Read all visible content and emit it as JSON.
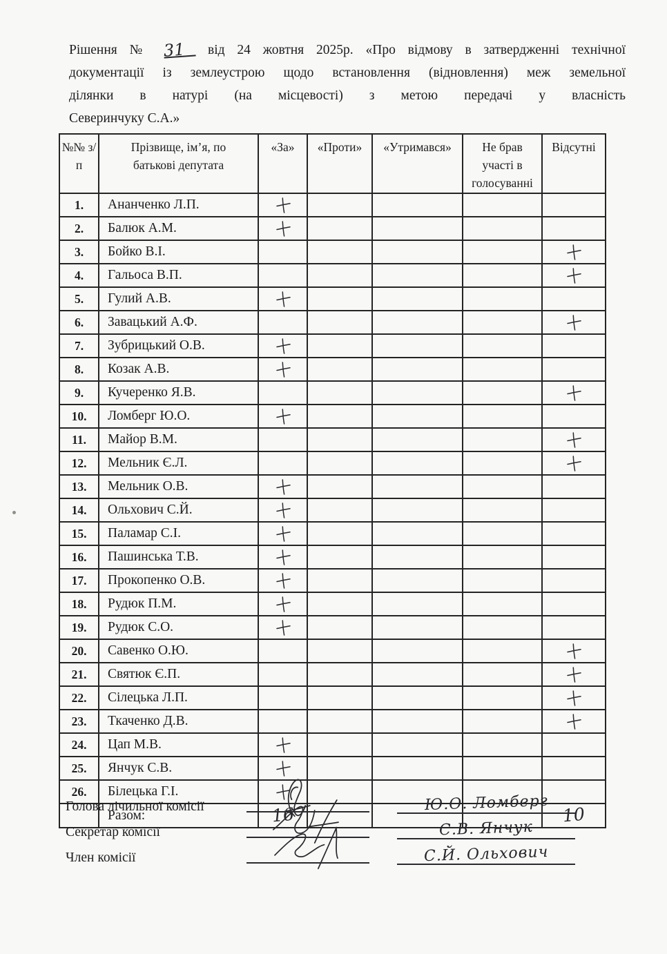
{
  "colors": {
    "ink": "#242424",
    "paper": "#f8f8f6",
    "handwriting": "#26262b"
  },
  "icons": {
    "vote_mark": "handwritten-plus-icon",
    "signature": "ink-scribble-icon"
  },
  "header": {
    "prefix": "Рішення №",
    "number": "31",
    "line1_rest": "від 24 жовтня 2025р. «Про відмову в затвердженні технічної",
    "line2": "документації із землеустрою щодо встановлення (відновлення) меж земельної",
    "line3": "ділянки в натурі (на місцевості) з метою передачі у власність",
    "line4": "Северинчуку С.А.»"
  },
  "table": {
    "headers": [
      "№№ з/п",
      "Прізвище, ім’я, по батькові депутата",
      "«За»",
      "«Проти»",
      "«Утримався»",
      "Не брав участі в голосуванні",
      "Відсутні"
    ],
    "rows": [
      {
        "num": "1.",
        "name": "Ананченко Л.П.",
        "vote": "za"
      },
      {
        "num": "2.",
        "name": "Балюк А.М.",
        "vote": "za"
      },
      {
        "num": "3.",
        "name": "Бойко В.І.",
        "vote": "vidsutni"
      },
      {
        "num": "4.",
        "name": "Гальоса В.П.",
        "vote": "vidsutni"
      },
      {
        "num": "5.",
        "name": "Гулий А.В.",
        "vote": "za"
      },
      {
        "num": "6.",
        "name": "Завацький А.Ф.",
        "vote": "vidsutni"
      },
      {
        "num": "7.",
        "name": "Зубрицький О.В.",
        "vote": "za"
      },
      {
        "num": "8.",
        "name": "Козак А.В.",
        "vote": "za"
      },
      {
        "num": "9.",
        "name": "Кучеренко Я.В.",
        "vote": "vidsutni"
      },
      {
        "num": "10.",
        "name": "Ломберг Ю.О.",
        "vote": "za"
      },
      {
        "num": "11.",
        "name": "Майор В.М.",
        "vote": "vidsutni"
      },
      {
        "num": "12.",
        "name": "Мельник Є.Л.",
        "vote": "vidsutni"
      },
      {
        "num": "13.",
        "name": "Мельник О.В.",
        "vote": "za"
      },
      {
        "num": "14.",
        "name": "Ольхович С.Й.",
        "vote": "za"
      },
      {
        "num": "15.",
        "name": "Паламар С.І.",
        "vote": "za"
      },
      {
        "num": "16.",
        "name": "Пашинська Т.В.",
        "vote": "za"
      },
      {
        "num": "17.",
        "name": "Прокопенко О.В.",
        "vote": "za"
      },
      {
        "num": "18.",
        "name": "Рудюк П.М.",
        "vote": "za"
      },
      {
        "num": "19.",
        "name": "Рудюк С.О.",
        "vote": "za"
      },
      {
        "num": "20.",
        "name": "Савенко О.Ю.",
        "vote": "vidsutni"
      },
      {
        "num": "21.",
        "name": "Святюк Є.П.",
        "vote": "vidsutni"
      },
      {
        "num": "22.",
        "name": "Сілецька Л.П.",
        "vote": "vidsutni"
      },
      {
        "num": "23.",
        "name": "Ткаченко Д.В.",
        "vote": "vidsutni"
      },
      {
        "num": "24.",
        "name": "Цап М.В.",
        "vote": "za"
      },
      {
        "num": "25.",
        "name": "Янчук С.В.",
        "vote": "za"
      },
      {
        "num": "26.",
        "name": "Білецька Г.І.",
        "vote": "za"
      }
    ],
    "total_label": "Разом:",
    "total_za": "16",
    "total_vidsutni": "10"
  },
  "signatures": {
    "rows": [
      {
        "role": "Голова лічильної комісії",
        "name": "Ю.О. Ломберг"
      },
      {
        "role": "Секретар комісії",
        "name": "С.В. Янчук"
      },
      {
        "role": "Член комісії",
        "name": "С.Й. Ольхович"
      }
    ]
  }
}
